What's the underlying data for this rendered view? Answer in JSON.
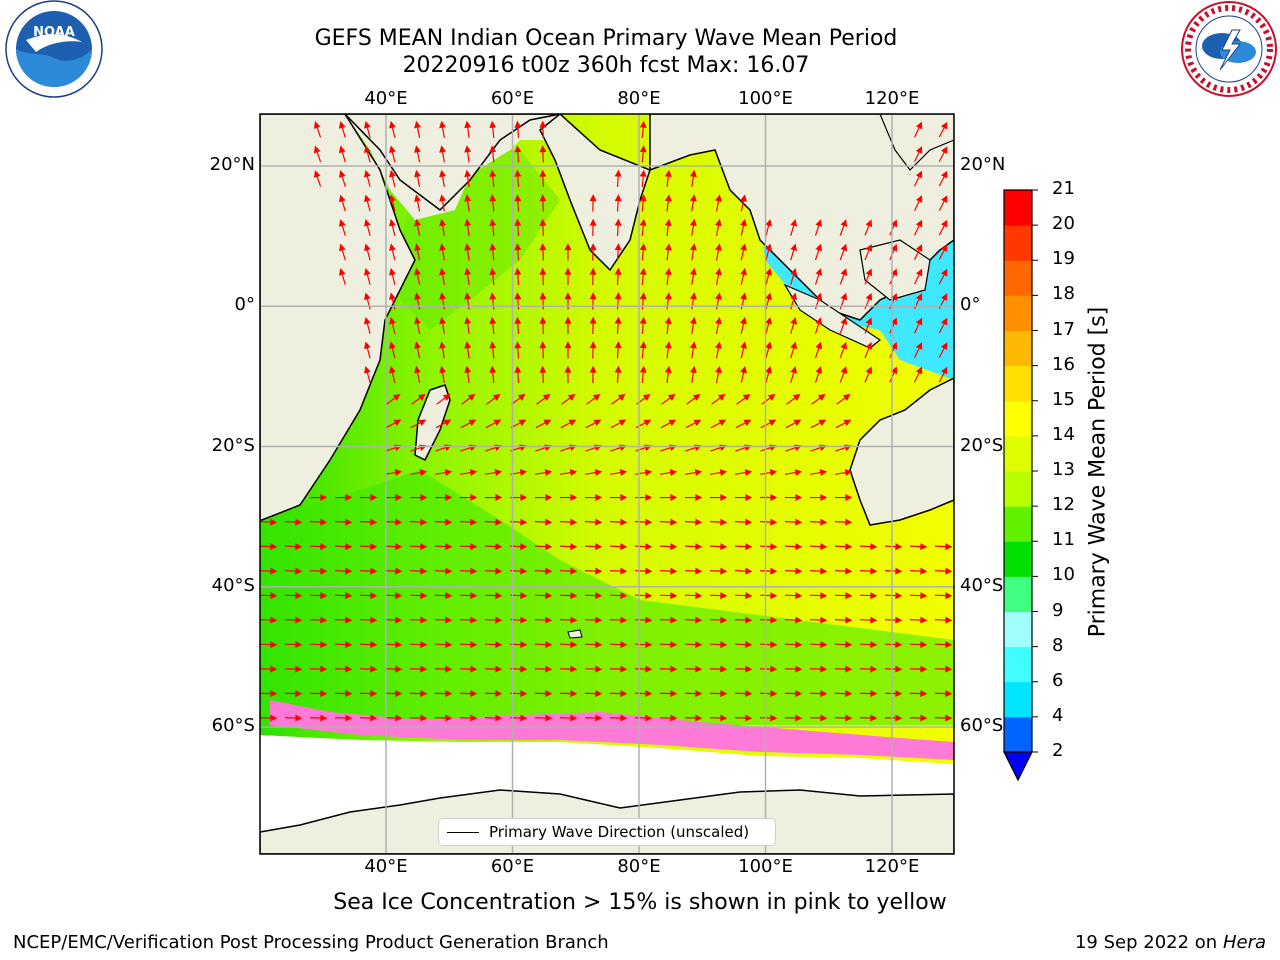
{
  "title": {
    "line1": "GEFS MEAN Indian Ocean Primary Wave Mean Period",
    "line2": "20220916 t00z 360h fcst   Max: 16.07"
  },
  "map": {
    "lon_range": [
      20,
      130
    ],
    "lat_range": [
      -75,
      28
    ],
    "lon_ticks": [
      {
        "value": 40,
        "label": "40°E"
      },
      {
        "value": 60,
        "label": "60°E"
      },
      {
        "value": 80,
        "label": "80°E"
      },
      {
        "value": 100,
        "label": "100°E"
      },
      {
        "value": 120,
        "label": "120°E"
      }
    ],
    "lat_ticks": [
      {
        "value": 20,
        "label": "20°N"
      },
      {
        "value": 0,
        "label": "0°"
      },
      {
        "value": -20,
        "label": "20°S"
      },
      {
        "value": -40,
        "label": "40°S"
      },
      {
        "value": -60,
        "label": "60°S"
      }
    ],
    "land_color": "#efefdf",
    "ice_color": "#ffffff",
    "arrow_color": "#ff0000",
    "grid_color": "#b0b0b0"
  },
  "colorbar": {
    "label": "Primary Wave Mean Period [s]",
    "boundaries": [
      2,
      4,
      6,
      8,
      9,
      10,
      11,
      12,
      13,
      14,
      15,
      16,
      17,
      18,
      19,
      20,
      21
    ],
    "colors": [
      "#0064ff",
      "#00e5ff",
      "#40fdff",
      "#a0fffc",
      "#40ff80",
      "#00e000",
      "#60f000",
      "#b8ff00",
      "#e0fc00",
      "#ffff00",
      "#ffe000",
      "#ffb800",
      "#ff9000",
      "#ff6800",
      "#ff3800",
      "#ff0000"
    ],
    "under_color": "#0000ff"
  },
  "legend": {
    "label": "Primary Wave Direction (unscaled)"
  },
  "notes": {
    "sea_ice": "Sea Ice Concentration > 15% is shown in pink to yellow"
  },
  "footer": {
    "left": "NCEP/EMC/Verification Post Processing Product Generation Branch",
    "date": "19 Sep 2022 on",
    "host": "Hera"
  },
  "logos": {
    "noaa_text": "NOAA",
    "nws_text": "NATIONAL WEATHER SERVICE"
  }
}
